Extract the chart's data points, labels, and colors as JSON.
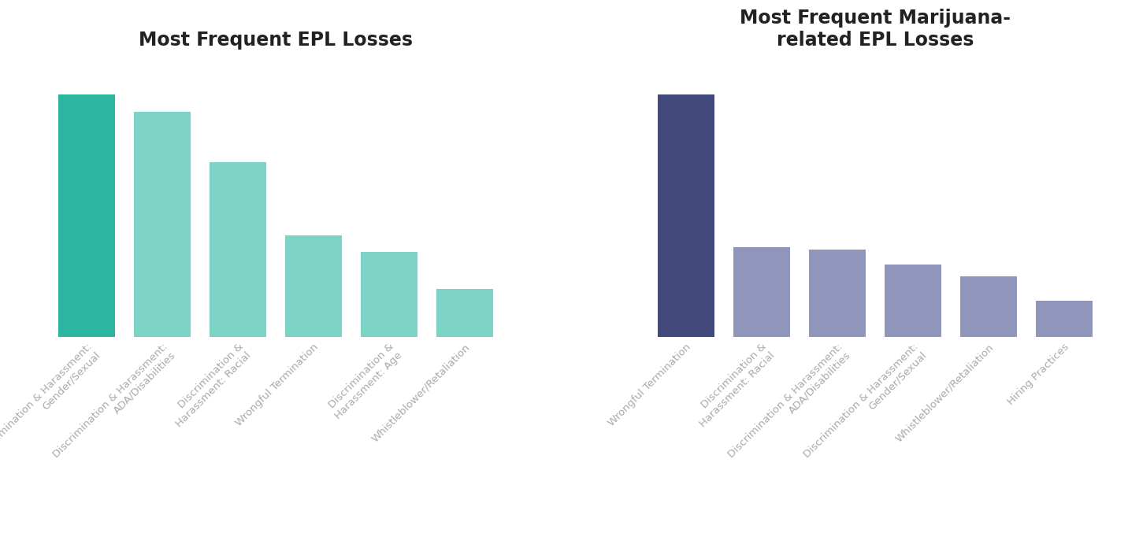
{
  "chart1": {
    "title": "Most Frequent EPL Losses",
    "categories": [
      "Discrimination & Harassment:\nGender/Sexual",
      "Discrimination & Harassment:\nADA/Disabilities",
      "Discrimination &\nHarassment: Racial",
      "Wrongful Termination",
      "Discrimination &\nHarassment: Age",
      "Whistleblower/Retaliation"
    ],
    "values": [
      100,
      93,
      72,
      42,
      35,
      20
    ],
    "colors": [
      "#2cb5a0",
      "#7dd4c6",
      "#7dd4c6",
      "#7dd4c6",
      "#7dd4c6",
      "#7dd4c6"
    ]
  },
  "chart2": {
    "title": "Most Frequent Marijuana-\nrelated EPL Losses",
    "categories": [
      "Wrongful Termination",
      "Discrimination &\nHarassment: Racial",
      "Discrimination & Harassment:\nADA/Disabilities",
      "Discrimination & Harassment:\nGender/Sexual",
      "Whistleblower/Retaliation",
      "Hiring Practices"
    ],
    "values": [
      100,
      37,
      36,
      30,
      25,
      15
    ],
    "colors": [
      "#42497d",
      "#9096bb",
      "#9096bb",
      "#9096bb",
      "#9096bb",
      "#9096bb"
    ]
  },
  "background_color": "#ffffff",
  "label_color": "#aaaaaa",
  "title_fontsize": 17,
  "label_fontsize": 9.5
}
